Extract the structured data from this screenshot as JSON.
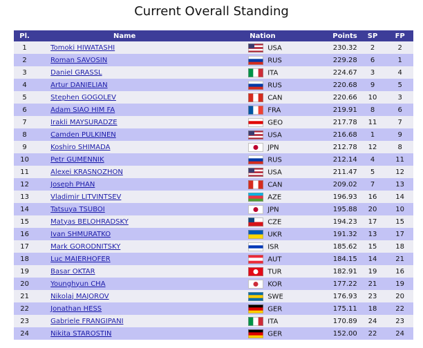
{
  "title": "Current Overall Standing",
  "table": {
    "header": [
      "Pl.",
      "Name",
      "Nation",
      "Points",
      "SP",
      "FP"
    ],
    "rows": [
      [
        "1",
        "Tomoki HIWATASHI",
        "USA",
        "230.32",
        "2",
        "2"
      ],
      [
        "2",
        "Roman SAVOSIN",
        "RUS",
        "229.28",
        "6",
        "1"
      ],
      [
        "3",
        "Daniel GRASSL",
        "ITA",
        "224.67",
        "3",
        "4"
      ],
      [
        "4",
        "Artur DANIELIAN",
        "RUS",
        "220.68",
        "9",
        "5"
      ],
      [
        "5",
        "Stephen GOGOLEV",
        "CAN",
        "220.66",
        "10",
        "3"
      ],
      [
        "6",
        "Adam SIAO HIM FA",
        "FRA",
        "219.91",
        "8",
        "6"
      ],
      [
        "7",
        "Irakli MAYSURADZE",
        "GEO",
        "217.78",
        "11",
        "7"
      ],
      [
        "8",
        "Camden PULKINEN",
        "USA",
        "216.68",
        "1",
        "9"
      ],
      [
        "9",
        "Koshiro SHIMADA",
        "JPN",
        "212.78",
        "12",
        "8"
      ],
      [
        "10",
        "Petr GUMENNIK",
        "RUS",
        "212.14",
        "4",
        "11"
      ],
      [
        "11",
        "Alexei KRASNOZHON",
        "USA",
        "211.47",
        "5",
        "12"
      ],
      [
        "12",
        "Joseph PHAN",
        "CAN",
        "209.02",
        "7",
        "13"
      ],
      [
        "13",
        "Vladimir LITVINTSEV",
        "AZE",
        "196.93",
        "16",
        "14"
      ],
      [
        "14",
        "Tatsuya TSUBOI",
        "JPN",
        "195.88",
        "20",
        "10"
      ],
      [
        "15",
        "Matyas BELOHRADSKY",
        "CZE",
        "194.23",
        "17",
        "15"
      ],
      [
        "16",
        "Ivan SHMURATKO",
        "UKR",
        "191.32",
        "13",
        "17"
      ],
      [
        "17",
        "Mark GORODNITSKY",
        "ISR",
        "185.62",
        "15",
        "18"
      ],
      [
        "18",
        "Luc MAIERHOFER",
        "AUT",
        "184.15",
        "14",
        "21"
      ],
      [
        "19",
        "Basar OKTAR",
        "TUR",
        "182.91",
        "19",
        "16"
      ],
      [
        "20",
        "Younghyun CHA",
        "KOR",
        "177.22",
        "21",
        "19"
      ],
      [
        "21",
        "Nikolaj MAJOROV",
        "SWE",
        "176.93",
        "23",
        "20"
      ],
      [
        "22",
        "Jonathan HESS",
        "GER",
        "175.11",
        "18",
        "22"
      ],
      [
        "23",
        "Gabriele FRANGIPANI",
        "ITA",
        "170.89",
        "24",
        "23"
      ],
      [
        "24",
        "Nikita STAROSTIN",
        "GER",
        "152.00",
        "22",
        "24"
      ]
    ]
  }
}
